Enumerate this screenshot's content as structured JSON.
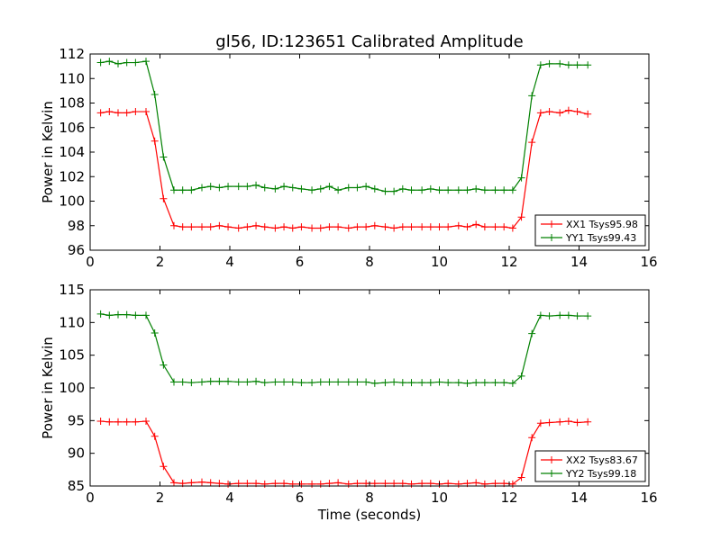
{
  "chart_data": [
    {
      "type": "line",
      "title": "gl56, ID:123651 Calibrated Amplitude",
      "xlabel": "",
      "ylabel": "Power in Kelvin",
      "xlim": [
        0,
        16
      ],
      "ylim": [
        96,
        112
      ],
      "xticks": [
        "0",
        "2",
        "4",
        "6",
        "8",
        "10",
        "12",
        "14",
        "16"
      ],
      "yticks": [
        "96",
        "98",
        "100",
        "102",
        "104",
        "106",
        "108",
        "110",
        "112"
      ],
      "grid": false,
      "legend_position": "bottom-right",
      "x": [
        0.3,
        0.55,
        0.8,
        1.05,
        1.3,
        1.6,
        1.85,
        2.1,
        2.4,
        2.65,
        2.9,
        3.2,
        3.45,
        3.7,
        3.95,
        4.25,
        4.5,
        4.75,
        5.0,
        5.3,
        5.55,
        5.8,
        6.05,
        6.35,
        6.6,
        6.85,
        7.1,
        7.4,
        7.65,
        7.9,
        8.15,
        8.45,
        8.7,
        8.95,
        9.2,
        9.5,
        9.75,
        10.0,
        10.25,
        10.55,
        10.8,
        11.05,
        11.3,
        11.6,
        11.85,
        12.1,
        12.35,
        12.65,
        12.9,
        13.15,
        13.45,
        13.7,
        13.95,
        14.25
      ],
      "series": [
        {
          "name": "XX1 Tsys95.98",
          "color": "#ff0000",
          "values": [
            107.2,
            107.3,
            107.2,
            107.2,
            107.3,
            107.3,
            104.9,
            100.2,
            98.0,
            97.9,
            97.9,
            97.9,
            97.9,
            98.0,
            97.9,
            97.8,
            97.9,
            98.0,
            97.9,
            97.8,
            97.9,
            97.8,
            97.9,
            97.8,
            97.8,
            97.9,
            97.9,
            97.8,
            97.9,
            97.9,
            98.0,
            97.9,
            97.8,
            97.9,
            97.9,
            97.9,
            97.9,
            97.9,
            97.9,
            98.0,
            97.9,
            98.1,
            97.9,
            97.9,
            97.9,
            97.8,
            98.7,
            104.8,
            107.2,
            107.3,
            107.2,
            107.4,
            107.3,
            107.1
          ]
        },
        {
          "name": "YY1 Tsys99.43",
          "color": "#008000",
          "values": [
            111.3,
            111.4,
            111.2,
            111.3,
            111.3,
            111.4,
            108.7,
            103.6,
            100.9,
            100.9,
            100.9,
            101.1,
            101.2,
            101.1,
            101.2,
            101.2,
            101.2,
            101.3,
            101.1,
            101.0,
            101.2,
            101.1,
            101.0,
            100.9,
            101.0,
            101.2,
            100.9,
            101.1,
            101.1,
            101.2,
            101.0,
            100.8,
            100.8,
            101.0,
            100.9,
            100.9,
            101.0,
            100.9,
            100.9,
            100.9,
            100.9,
            101.0,
            100.9,
            100.9,
            100.9,
            100.9,
            101.9,
            108.6,
            111.1,
            111.2,
            111.2,
            111.1,
            111.1,
            111.1
          ]
        }
      ]
    },
    {
      "type": "line",
      "title": "",
      "xlabel": "Time (seconds)",
      "ylabel": "Power in Kelvin",
      "xlim": [
        0,
        16
      ],
      "ylim": [
        85,
        115
      ],
      "xticks": [
        "0",
        "2",
        "4",
        "6",
        "8",
        "10",
        "12",
        "14",
        "16"
      ],
      "yticks": [
        "85",
        "90",
        "95",
        "100",
        "105",
        "110",
        "115"
      ],
      "grid": false,
      "legend_position": "bottom-right",
      "x": [
        0.3,
        0.55,
        0.8,
        1.05,
        1.3,
        1.6,
        1.85,
        2.1,
        2.4,
        2.65,
        2.9,
        3.2,
        3.45,
        3.7,
        3.95,
        4.25,
        4.5,
        4.75,
        5.0,
        5.3,
        5.55,
        5.8,
        6.05,
        6.35,
        6.6,
        6.85,
        7.1,
        7.4,
        7.65,
        7.9,
        8.15,
        8.45,
        8.7,
        8.95,
        9.2,
        9.5,
        9.75,
        10.0,
        10.25,
        10.55,
        10.8,
        11.05,
        11.3,
        11.6,
        11.85,
        12.1,
        12.35,
        12.65,
        12.9,
        13.15,
        13.45,
        13.7,
        13.95,
        14.25
      ],
      "series": [
        {
          "name": "XX2 Tsys83.67",
          "color": "#ff0000",
          "values": [
            94.9,
            94.8,
            94.8,
            94.8,
            94.8,
            94.9,
            92.6,
            88.0,
            85.5,
            85.4,
            85.5,
            85.6,
            85.5,
            85.4,
            85.3,
            85.4,
            85.4,
            85.4,
            85.3,
            85.4,
            85.4,
            85.3,
            85.3,
            85.3,
            85.3,
            85.4,
            85.5,
            85.3,
            85.4,
            85.4,
            85.4,
            85.4,
            85.4,
            85.4,
            85.3,
            85.4,
            85.4,
            85.3,
            85.4,
            85.3,
            85.4,
            85.5,
            85.3,
            85.4,
            85.4,
            85.3,
            86.3,
            92.4,
            94.6,
            94.7,
            94.8,
            94.9,
            94.7,
            94.8
          ]
        },
        {
          "name": "YY2 Tsys99.18",
          "color": "#008000",
          "values": [
            111.3,
            111.1,
            111.2,
            111.2,
            111.1,
            111.1,
            108.4,
            103.5,
            100.9,
            100.9,
            100.8,
            100.9,
            101.0,
            101.0,
            101.0,
            100.9,
            100.9,
            101.0,
            100.8,
            100.9,
            100.9,
            100.9,
            100.8,
            100.8,
            100.9,
            100.9,
            100.9,
            100.9,
            100.9,
            100.9,
            100.7,
            100.8,
            100.9,
            100.8,
            100.8,
            100.8,
            100.8,
            100.9,
            100.8,
            100.8,
            100.7,
            100.8,
            100.8,
            100.8,
            100.8,
            100.7,
            101.8,
            108.3,
            111.1,
            111.0,
            111.1,
            111.1,
            111.0,
            111.0
          ]
        }
      ]
    }
  ]
}
